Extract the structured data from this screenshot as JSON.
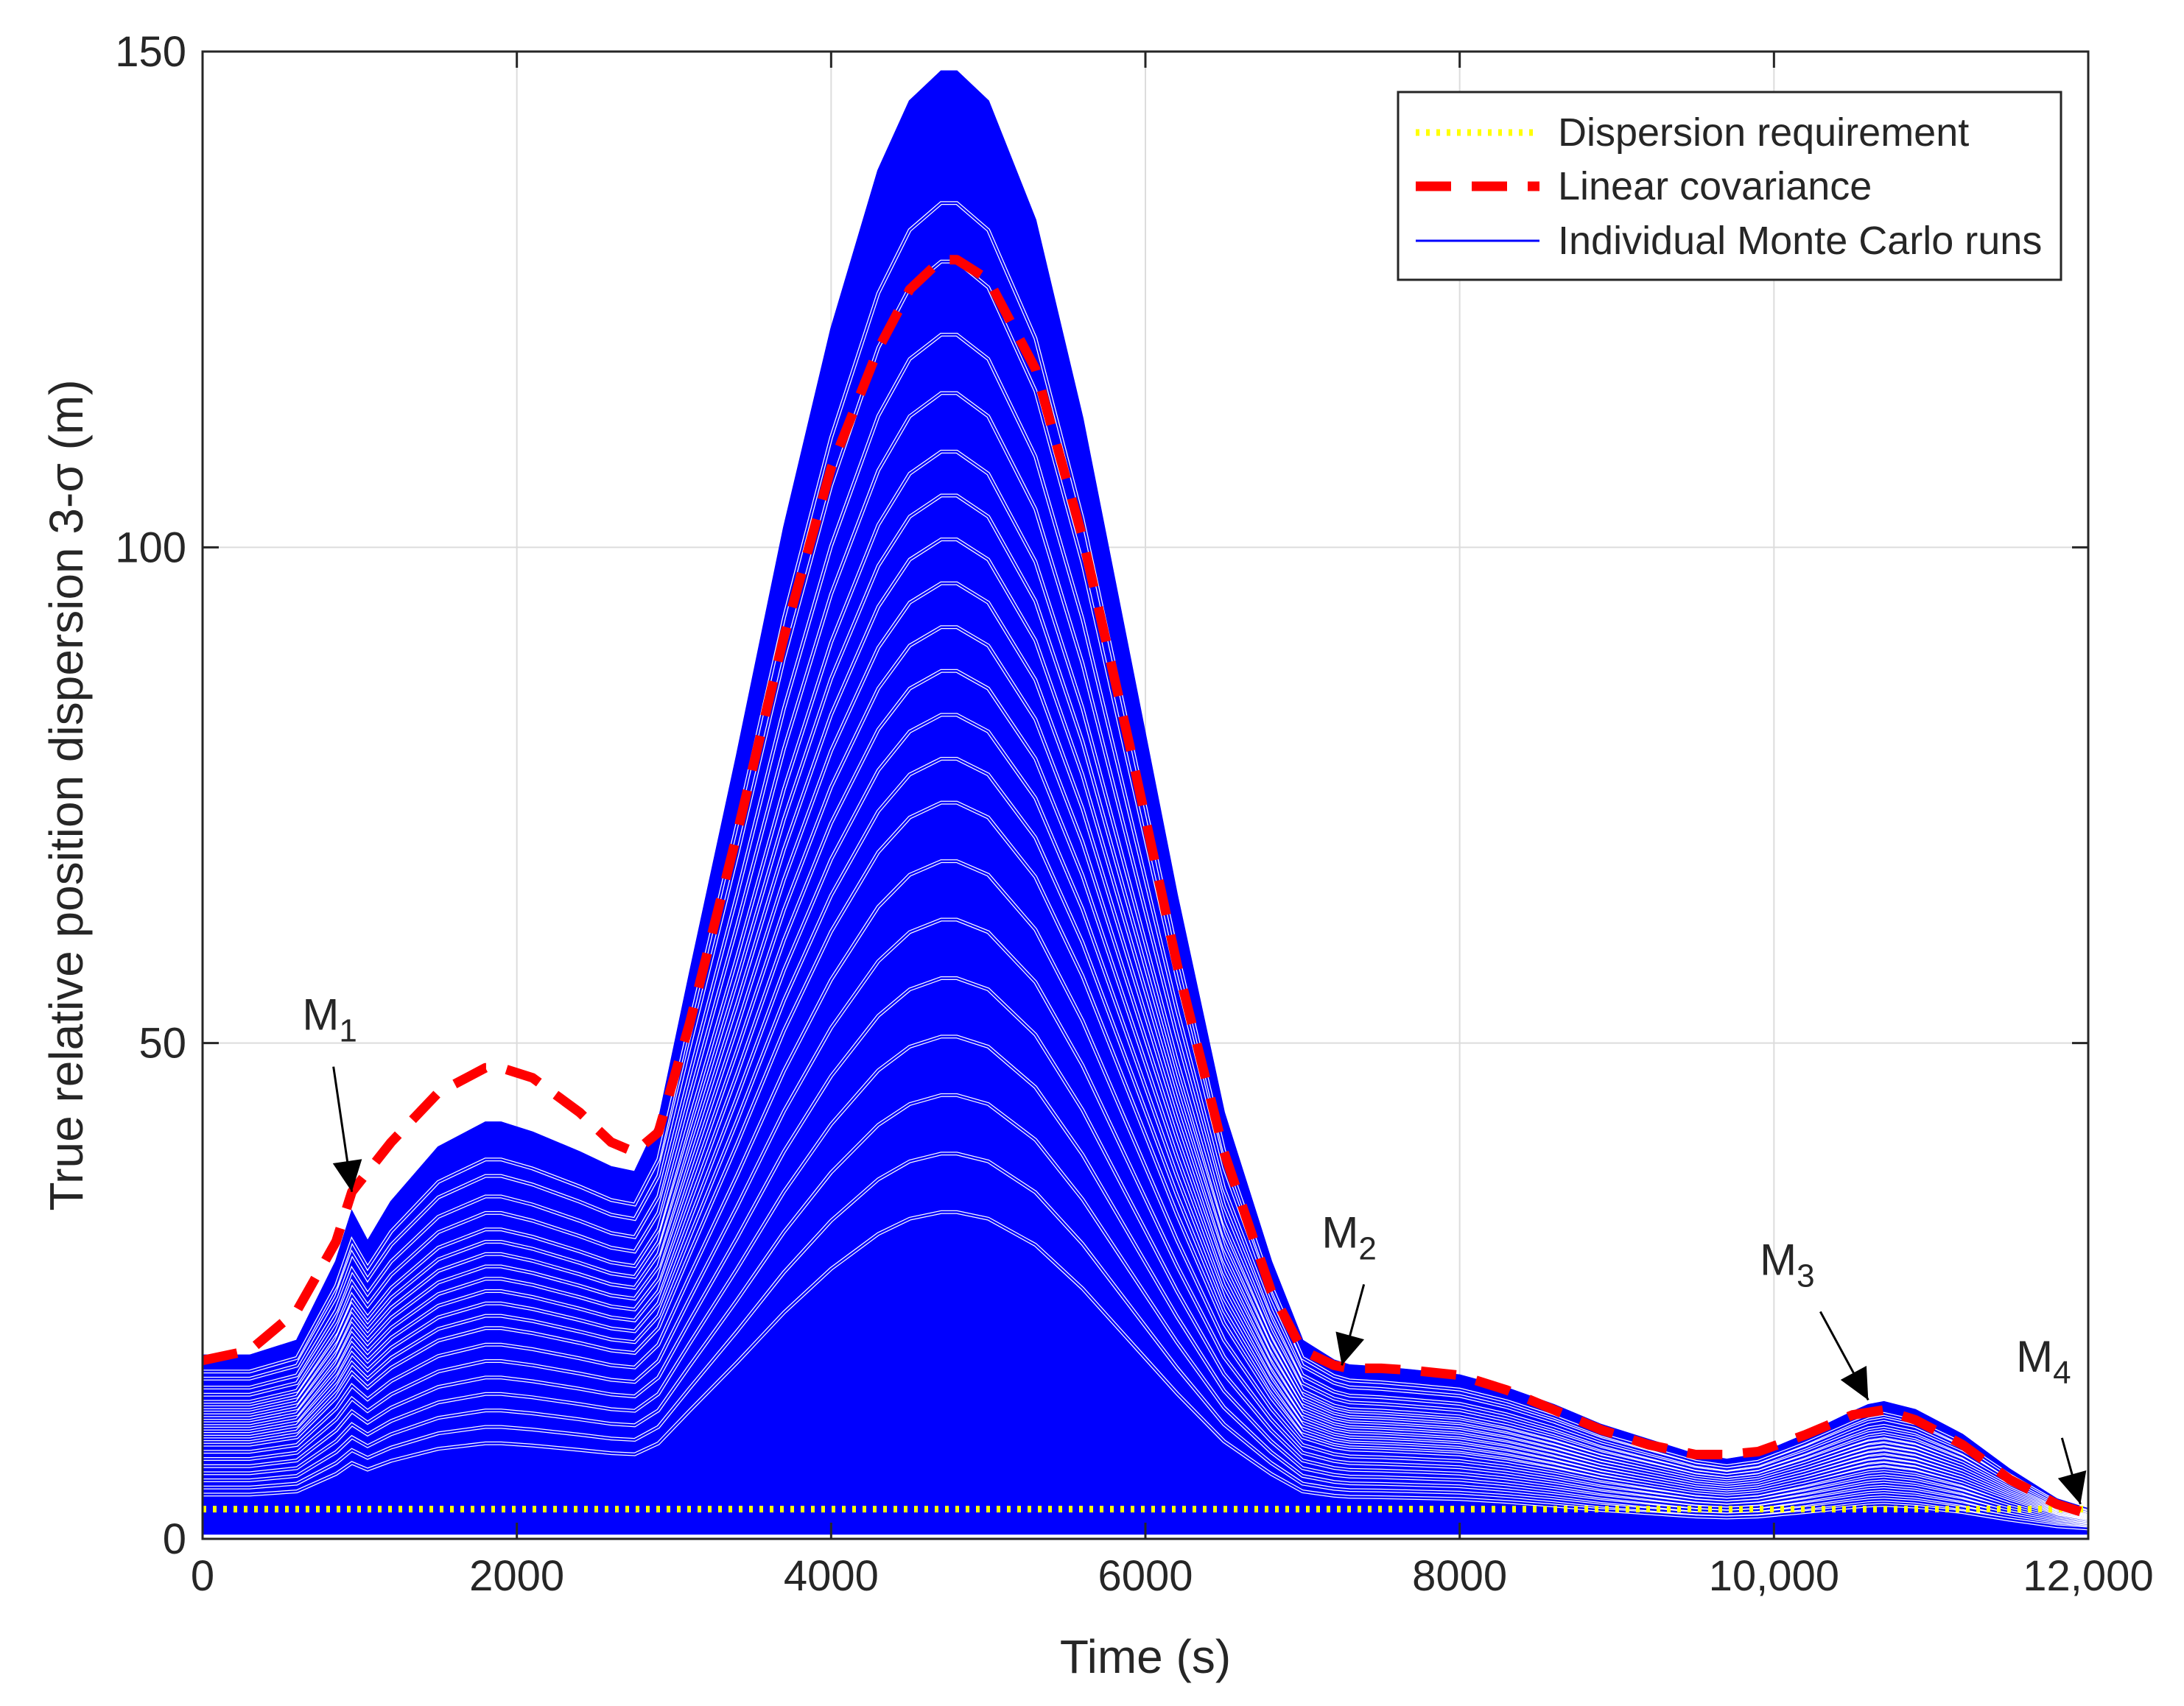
{
  "chart_data": {
    "type": "line",
    "title": "",
    "xlabel": "Time (s)",
    "ylabel": "True relative position dispersion 3-σ (m)",
    "xlim": [
      0,
      12000
    ],
    "ylim": [
      0,
      150
    ],
    "grid": true,
    "xticks": [
      0,
      2000,
      4000,
      6000,
      8000,
      10000,
      12000
    ],
    "xtick_labels": [
      "0",
      "2000",
      "4000",
      "6000",
      "8000",
      "10,000",
      "12,000"
    ],
    "yticks": [
      0,
      50,
      100,
      150
    ],
    "ytick_labels": [
      "0",
      "50",
      "100",
      "150"
    ],
    "legend_position": "top-right",
    "series": [
      {
        "name": "Dispersion requirement",
        "style": "dotted",
        "color": "#ffff00",
        "x": [
          0,
          12000
        ],
        "y": [
          3,
          3
        ]
      },
      {
        "name": "Linear covariance",
        "style": "dashed",
        "color": "#ff0000",
        "x": [
          0,
          300,
          600,
          850,
          950,
          1200,
          1500,
          1800,
          1900,
          2100,
          2400,
          2600,
          2750,
          2900,
          3100,
          3400,
          3700,
          4000,
          4300,
          4500,
          4700,
          4800,
          5000,
          5300,
          5600,
          5900,
          6200,
          6500,
          6800,
          7000,
          7200,
          7300,
          7500,
          7700,
          8000,
          8300,
          8600,
          8900,
          9200,
          9500,
          9700,
          9900,
          10200,
          10500,
          10700,
          10900,
          11200,
          11500,
          11800,
          12000
        ],
        "y": [
          18,
          19,
          23,
          30,
          35,
          40,
          45,
          47.5,
          47.5,
          46.5,
          43,
          40,
          39,
          41,
          52,
          71,
          91,
          108,
          120,
          126,
          129,
          129,
          127,
          118,
          101,
          80,
          58,
          39,
          25,
          19,
          17.5,
          17.2,
          17.2,
          17,
          16.5,
          15,
          13,
          11,
          9.5,
          8.5,
          8.5,
          8.8,
          10.5,
          12.5,
          13,
          12,
          9.5,
          6,
          3.5,
          2.5
        ]
      },
      {
        "name": "Individual Monte Carlo runs",
        "style": "solid",
        "color": "#0000ff",
        "x": [
          0,
          300,
          600,
          850,
          950,
          1050,
          1200,
          1500,
          1800,
          1900,
          2100,
          2400,
          2600,
          2750,
          2900,
          3100,
          3400,
          3700,
          4000,
          4300,
          4500,
          4700,
          4800,
          5000,
          5300,
          5600,
          5900,
          6200,
          6500,
          6800,
          7000,
          7200,
          7300,
          7500,
          7700,
          8000,
          8300,
          8600,
          8900,
          9200,
          9500,
          9700,
          9900,
          10200,
          10500,
          10600,
          10700,
          10900,
          11200,
          11500,
          11800,
          12000
        ],
        "envelope_max": [
          18.5,
          18.5,
          20,
          28,
          33,
          30,
          34,
          39.5,
          42,
          42,
          41,
          39,
          37.5,
          37,
          42,
          57,
          79,
          102,
          122,
          138,
          145,
          148,
          148,
          145,
          133,
          113,
          89,
          65,
          43,
          28,
          20,
          18,
          17.5,
          17.3,
          17,
          16.5,
          15.2,
          13.5,
          11.5,
          10,
          8.5,
          8,
          8.5,
          10.5,
          12.8,
          13.5,
          13.8,
          13,
          10.5,
          7,
          4,
          3
        ],
        "envelope_min": [
          0.5,
          0.5,
          0.5,
          0.5,
          0.5,
          0.5,
          0.5,
          0.5,
          0.5,
          0.5,
          0.5,
          0.5,
          0.5,
          0.5,
          0.5,
          0.5,
          0.5,
          0.5,
          0.5,
          0.5,
          0.5,
          0.5,
          0.5,
          0.5,
          0.5,
          0.5,
          0.5,
          0.5,
          0.5,
          0.5,
          0.5,
          0.5,
          0.5,
          0.5,
          0.5,
          0.5,
          0.5,
          0.5,
          0.5,
          0.5,
          0.5,
          0.5,
          0.5,
          0.5,
          0.5,
          0.5,
          0.5,
          0.5,
          0.5,
          0.5,
          0.5,
          0.5
        ],
        "sample_run_factors": [
          1.0,
          0.91,
          0.87,
          0.82,
          0.78,
          0.74,
          0.71,
          0.68,
          0.65,
          0.62,
          0.59,
          0.56,
          0.53,
          0.5,
          0.46,
          0.42,
          0.38,
          0.34,
          0.3,
          0.26,
          0.22
        ]
      }
    ],
    "annotations": [
      {
        "label": "M",
        "sub": "1",
        "x": 950,
        "y": 35
      },
      {
        "label": "M",
        "sub": "2",
        "x": 7250,
        "y": 17.5
      },
      {
        "label": "M",
        "sub": "3",
        "x": 10600,
        "y": 14
      },
      {
        "label": "M",
        "sub": "4",
        "x": 11950,
        "y": 3.5
      }
    ]
  },
  "colors": {
    "axis": "#262626",
    "grid": "#dcdcdc",
    "mc_runs": "#0000ff",
    "linear_covariance": "#ff0000",
    "requirement": "#ffff00"
  }
}
